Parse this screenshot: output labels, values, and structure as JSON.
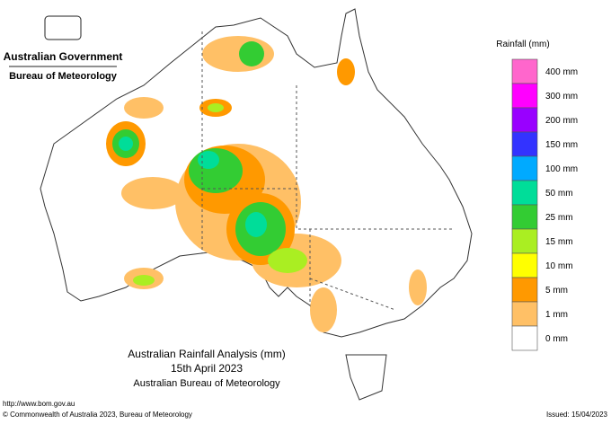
{
  "header": {
    "government": "Australian Government",
    "agency": "Bureau of Meteorology"
  },
  "legend": {
    "title": "Rainfall (mm)",
    "items": [
      {
        "label": "400 mm",
        "color": "#ff66cc"
      },
      {
        "label": "300 mm",
        "color": "#ff00ff"
      },
      {
        "label": "200 mm",
        "color": "#9900ff"
      },
      {
        "label": "150 mm",
        "color": "#3333ff"
      },
      {
        "label": "100 mm",
        "color": "#00aaff"
      },
      {
        "label": "50 mm",
        "color": "#00dd99"
      },
      {
        "label": "25 mm",
        "color": "#33cc33"
      },
      {
        "label": "15 mm",
        "color": "#aaee22"
      },
      {
        "label": "10 mm",
        "color": "#ffff00"
      },
      {
        "label": "5 mm",
        "color": "#ff9900"
      },
      {
        "label": "1 mm",
        "color": "#ffc066"
      },
      {
        "label": "0 mm",
        "color": "#ffffff"
      }
    ]
  },
  "title": {
    "line1": "Australian Rainfall Analysis (mm)",
    "line2": "15th April 2023",
    "line3": "Australian Bureau of Meteorology"
  },
  "footer": {
    "url": "http://www.bom.gov.au",
    "copyright": "© Commonwealth of Australia 2023, Bureau of Meteorology",
    "issued": "Issued: 15/04/2023"
  }
}
